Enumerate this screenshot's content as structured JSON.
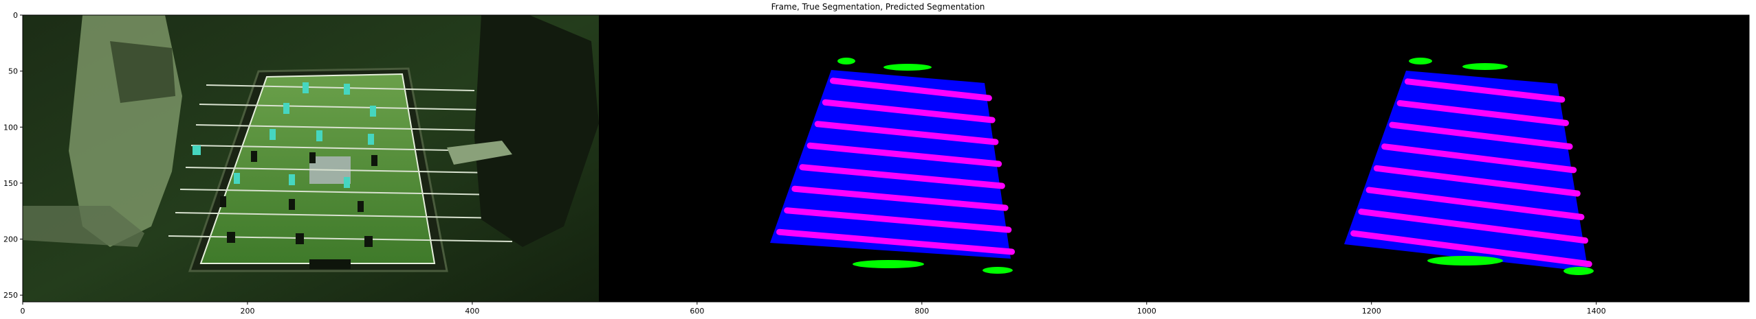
{
  "figure": {
    "title": "Frame, True Segmentation, Predicted Segmentation"
  },
  "axes": {
    "x_ticks": [
      "0",
      "200",
      "400",
      "600",
      "800",
      "1000",
      "1200",
      "1400"
    ],
    "y_ticks": [
      "0",
      "50",
      "100",
      "150",
      "200",
      "250"
    ],
    "x_range": [
      0,
      1536
    ],
    "y_range": [
      256,
      0
    ]
  },
  "panels": [
    {
      "name": "Frame",
      "content": "photo of people playing a foosball table, green tint"
    },
    {
      "name": "True Segmentation",
      "content": "mask: blue table field, magenta player rods, green hands/handles"
    },
    {
      "name": "Predicted Segmentation",
      "content": "mask: blue table field, magenta player rods, green hands/handles"
    }
  ],
  "colors": {
    "table_field": "#0000ff",
    "rods": "#ff00ff",
    "handles": "#00ff00",
    "background": "#000000",
    "photo_tint": "#1f3a16"
  }
}
